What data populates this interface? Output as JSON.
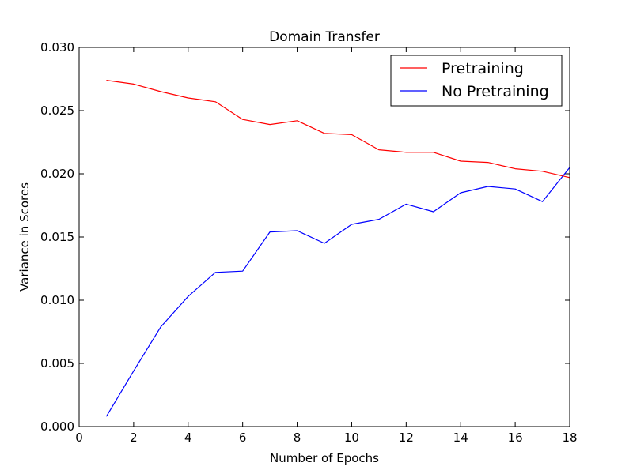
{
  "chart_data": {
    "type": "line",
    "title": "Domain Transfer",
    "xlabel": "Number of Epochs",
    "ylabel": "Variance in Scores",
    "xlim": [
      0,
      18
    ],
    "ylim": [
      0.0,
      0.03
    ],
    "xticks": [
      "0",
      "2",
      "4",
      "6",
      "8",
      "10",
      "12",
      "14",
      "16",
      "18"
    ],
    "yticks": [
      "0.000",
      "0.005",
      "0.010",
      "0.015",
      "0.020",
      "0.025",
      "0.030"
    ],
    "grid": false,
    "legend_position": "top-right",
    "x": [
      1,
      2,
      3,
      4,
      5,
      6,
      7,
      8,
      9,
      10,
      11,
      12,
      13,
      14,
      15,
      16,
      17,
      18
    ],
    "series": [
      {
        "name": "Pretraining",
        "color": "#ff0000",
        "values": [
          0.0274,
          0.0271,
          0.0265,
          0.026,
          0.0257,
          0.0243,
          0.0239,
          0.0242,
          0.0232,
          0.0231,
          0.0219,
          0.0217,
          0.0217,
          0.021,
          0.0209,
          0.0204,
          0.0202,
          0.0197
        ]
      },
      {
        "name": "No Pretraining",
        "color": "#0000ff",
        "values": [
          0.0008,
          0.0044,
          0.0079,
          0.0103,
          0.0122,
          0.0123,
          0.0154,
          0.0155,
          0.0145,
          0.016,
          0.0164,
          0.0176,
          0.017,
          0.0185,
          0.019,
          0.0188,
          0.0178,
          0.0205
        ]
      }
    ]
  }
}
